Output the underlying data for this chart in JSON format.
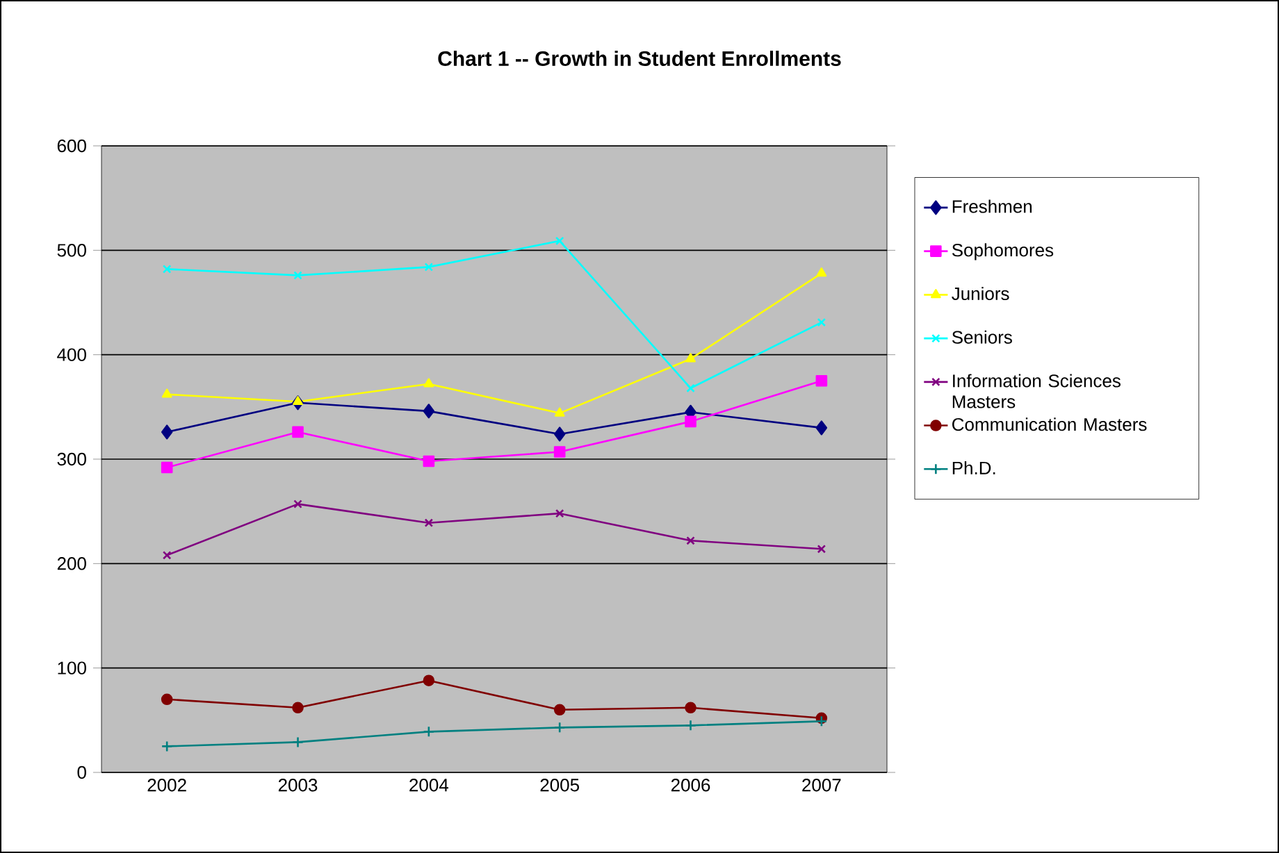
{
  "chart_data": {
    "type": "line",
    "title": "Chart 1 -- Growth in Student Enrollments",
    "categories": [
      "2002",
      "2003",
      "2004",
      "2005",
      "2006",
      "2007"
    ],
    "ylim": [
      0,
      600
    ],
    "yticks": [
      0,
      100,
      200,
      300,
      400,
      500,
      600
    ],
    "grid": "y",
    "legend": "right",
    "line_style": "solid",
    "series": [
      {
        "name": "Freshmen",
        "color": "#000080",
        "marker": "diamond",
        "values": [
          326,
          354,
          346,
          324,
          345,
          330
        ]
      },
      {
        "name": "Sophomores",
        "color": "#ff00ff",
        "marker": "square",
        "values": [
          292,
          326,
          298,
          307,
          336,
          375
        ]
      },
      {
        "name": "Juniors",
        "color": "#ffff00",
        "marker": "triangle",
        "values": [
          362,
          355,
          372,
          344,
          396,
          478
        ]
      },
      {
        "name": "Seniors",
        "color": "#00ffff",
        "marker": "cross",
        "values": [
          482,
          476,
          484,
          509,
          368,
          431
        ]
      },
      {
        "name": "Information Sciences Masters",
        "color": "#800080",
        "marker": "cross",
        "values": [
          208,
          257,
          239,
          248,
          222,
          214
        ]
      },
      {
        "name": "Communication Masters",
        "color": "#800000",
        "marker": "circle",
        "values": [
          70,
          62,
          88,
          60,
          62,
          52
        ]
      },
      {
        "name": "Ph.D.",
        "color": "#008080",
        "marker": "plus",
        "values": [
          25,
          29,
          39,
          43,
          45,
          49
        ]
      }
    ]
  }
}
